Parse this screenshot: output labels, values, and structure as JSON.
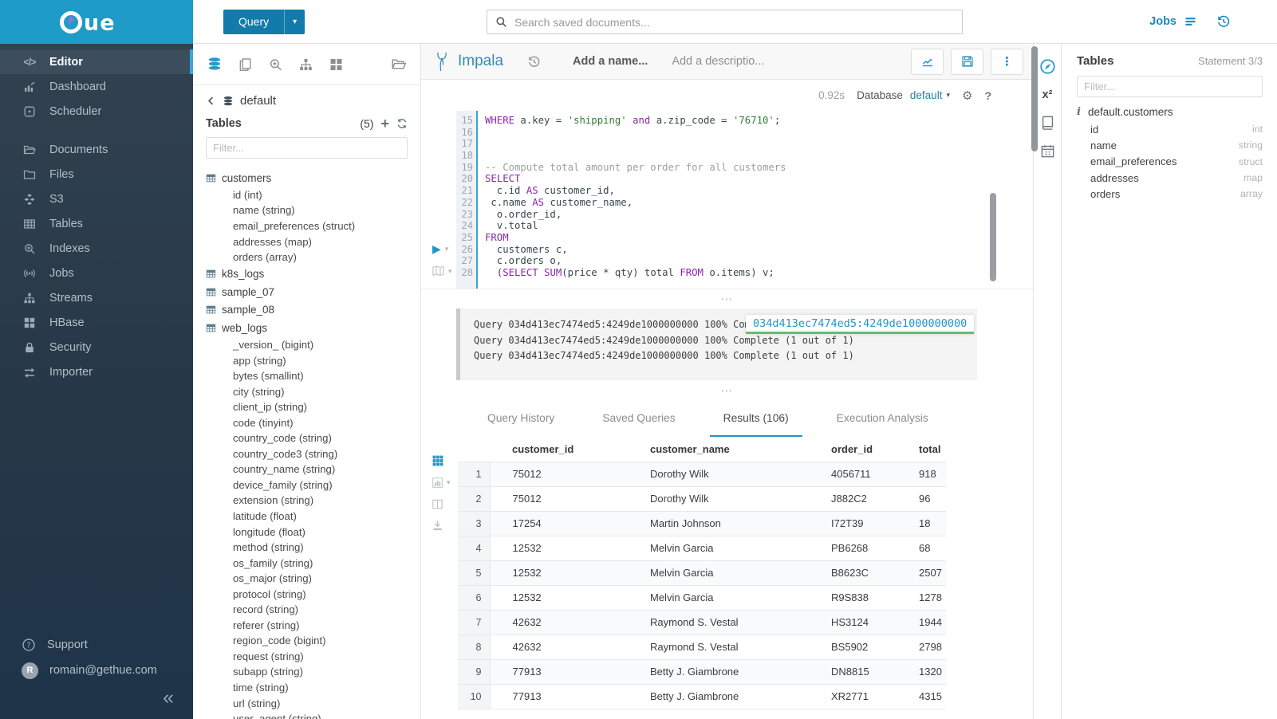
{
  "brand": {
    "logo_ue": "ue"
  },
  "topbar": {
    "query_button": "Query",
    "search_placeholder": "Search saved documents...",
    "jobs_label": "Jobs"
  },
  "sidebar": {
    "items": [
      {
        "label": "Editor",
        "icon": "code-icon",
        "active": true
      },
      {
        "label": "Dashboard",
        "icon": "dashboard-icon"
      },
      {
        "label": "Scheduler",
        "icon": "scheduler-icon"
      },
      {
        "label": "Documents",
        "icon": "documents-icon",
        "gap": true
      },
      {
        "label": "Files",
        "icon": "files-icon"
      },
      {
        "label": "S3",
        "icon": "s3-icon"
      },
      {
        "label": "Tables",
        "icon": "tables-icon"
      },
      {
        "label": "Indexes",
        "icon": "indexes-icon"
      },
      {
        "label": "Jobs",
        "icon": "jobs-icon"
      },
      {
        "label": "Streams",
        "icon": "streams-icon"
      },
      {
        "label": "HBase",
        "icon": "hbase-icon"
      },
      {
        "label": "Security",
        "icon": "security-icon"
      },
      {
        "label": "Importer",
        "icon": "importer-icon"
      }
    ],
    "support_label": "Support",
    "user_initial": "R",
    "user_email": "romain@gethue.com"
  },
  "left_assist": {
    "database": "default",
    "tables_label": "Tables",
    "tables_count": "(5)",
    "filter_placeholder": "Filter...",
    "tree": [
      {
        "kind": "table",
        "label": "customers"
      },
      {
        "kind": "column",
        "label": "id (int)"
      },
      {
        "kind": "column",
        "label": "name (string)"
      },
      {
        "kind": "column",
        "label": "email_preferences (struct)"
      },
      {
        "kind": "column",
        "label": "addresses (map)"
      },
      {
        "kind": "column",
        "label": "orders (array)"
      },
      {
        "kind": "table",
        "label": "k8s_logs"
      },
      {
        "kind": "table",
        "label": "sample_07"
      },
      {
        "kind": "table",
        "label": "sample_08"
      },
      {
        "kind": "table",
        "label": "web_logs"
      },
      {
        "kind": "column",
        "label": "_version_ (bigint)"
      },
      {
        "kind": "column",
        "label": "app (string)"
      },
      {
        "kind": "column",
        "label": "bytes (smallint)"
      },
      {
        "kind": "column",
        "label": "city (string)"
      },
      {
        "kind": "column",
        "label": "client_ip (string)"
      },
      {
        "kind": "column",
        "label": "code (tinyint)"
      },
      {
        "kind": "column",
        "label": "country_code (string)"
      },
      {
        "kind": "column",
        "label": "country_code3 (string)"
      },
      {
        "kind": "column",
        "label": "country_name (string)"
      },
      {
        "kind": "column",
        "label": "device_family (string)"
      },
      {
        "kind": "column",
        "label": "extension (string)"
      },
      {
        "kind": "column",
        "label": "latitude (float)"
      },
      {
        "kind": "column",
        "label": "longitude (float)"
      },
      {
        "kind": "column",
        "label": "method (string)"
      },
      {
        "kind": "column",
        "label": "os_family (string)"
      },
      {
        "kind": "column",
        "label": "os_major (string)"
      },
      {
        "kind": "column",
        "label": "protocol (string)"
      },
      {
        "kind": "column",
        "label": "record (string)"
      },
      {
        "kind": "column",
        "label": "referer (string)"
      },
      {
        "kind": "column",
        "label": "region_code (bigint)"
      },
      {
        "kind": "column",
        "label": "request (string)"
      },
      {
        "kind": "column",
        "label": "subapp (string)"
      },
      {
        "kind": "column",
        "label": "time (string)"
      },
      {
        "kind": "column",
        "label": "url (string)"
      },
      {
        "kind": "column",
        "label": "user_agent (string)"
      }
    ]
  },
  "editor": {
    "engine": "Impala",
    "name_placeholder": "Add a name...",
    "description_placeholder": "Add a descriptio...",
    "exec_time": "0.92s",
    "database_label": "Database",
    "database_value": "default",
    "code": [
      {
        "n": "15",
        "tokens": [
          [
            "k",
            "WHERE"
          ],
          [
            "p",
            " a.key = "
          ],
          [
            "s",
            "'shipping'"
          ],
          [
            "p",
            " "
          ],
          [
            "k",
            "and"
          ],
          [
            "p",
            " a.zip_code = "
          ],
          [
            "s",
            "'76710'"
          ],
          [
            "p",
            ";"
          ]
        ]
      },
      {
        "n": "16",
        "tokens": []
      },
      {
        "n": "17",
        "tokens": []
      },
      {
        "n": "18",
        "tokens": []
      },
      {
        "n": "19",
        "tokens": [
          [
            "c",
            "-- Compute total amount per order for all customers"
          ]
        ]
      },
      {
        "n": "20",
        "tokens": [
          [
            "k",
            "SELECT"
          ]
        ]
      },
      {
        "n": "21",
        "tokens": [
          [
            "p",
            "  c.id "
          ],
          [
            "k",
            "AS"
          ],
          [
            "p",
            " customer_id,"
          ]
        ]
      },
      {
        "n": "22",
        "tokens": [
          [
            "p",
            " c.name "
          ],
          [
            "k",
            "AS"
          ],
          [
            "p",
            " customer_name,"
          ]
        ]
      },
      {
        "n": "23",
        "tokens": [
          [
            "p",
            "  o.order_id,"
          ]
        ]
      },
      {
        "n": "24",
        "tokens": [
          [
            "p",
            "  v.total"
          ]
        ]
      },
      {
        "n": "25",
        "tokens": [
          [
            "k",
            "FROM"
          ]
        ]
      },
      {
        "n": "26",
        "tokens": [
          [
            "p",
            "  customers c,"
          ]
        ]
      },
      {
        "n": "27",
        "tokens": [
          [
            "p",
            "  c.orders o,"
          ]
        ]
      },
      {
        "n": "28",
        "tokens": [
          [
            "p",
            "  ("
          ],
          [
            "k",
            "SELECT"
          ],
          [
            "p",
            " "
          ],
          [
            "k",
            "SUM"
          ],
          [
            "p",
            "(price * qty) total "
          ],
          [
            "k",
            "FROM"
          ],
          [
            "p",
            " o.items) v;"
          ]
        ]
      }
    ],
    "log_lines": [
      "Query 034d413ec7474ed5:4249de1000000000 100% Complete (1 out of 1)",
      "Query 034d413ec7474ed5:4249de1000000000 100% Complete (1 out of 1)",
      "Query 034d413ec7474ed5:4249de1000000000 100% Complete (1 out of 1)"
    ],
    "query_id_tooltip": "034d413ec7474ed5:4249de1000000000"
  },
  "tabs": [
    {
      "label": "Query History"
    },
    {
      "label": "Saved Queries"
    },
    {
      "label": "Results (106)",
      "active": true
    },
    {
      "label": "Execution Analysis"
    }
  ],
  "results": {
    "columns": [
      "customer_id",
      "customer_name",
      "order_id",
      "total"
    ],
    "rows": [
      {
        "i": "1",
        "cells": [
          "75012",
          "Dorothy Wilk",
          "4056711",
          "918"
        ]
      },
      {
        "i": "2",
        "cells": [
          "75012",
          "Dorothy Wilk",
          "J882C2",
          "96"
        ]
      },
      {
        "i": "3",
        "cells": [
          "17254",
          "Martin Johnson",
          "I72T39",
          "18"
        ]
      },
      {
        "i": "4",
        "cells": [
          "12532",
          "Melvin Garcia",
          "PB6268",
          "68"
        ]
      },
      {
        "i": "5",
        "cells": [
          "12532",
          "Melvin Garcia",
          "B8623C",
          "2507"
        ]
      },
      {
        "i": "6",
        "cells": [
          "12532",
          "Melvin Garcia",
          "R9S838",
          "1278"
        ]
      },
      {
        "i": "7",
        "cells": [
          "42632",
          "Raymond S. Vestal",
          "HS3124",
          "1944"
        ]
      },
      {
        "i": "8",
        "cells": [
          "42632",
          "Raymond S. Vestal",
          "BS5902",
          "2798"
        ]
      },
      {
        "i": "9",
        "cells": [
          "77913",
          "Betty J. Giambrone",
          "DN8815",
          "1320"
        ]
      },
      {
        "i": "10",
        "cells": [
          "77913",
          "Betty J. Giambrone",
          "XR2771",
          "4315"
        ]
      }
    ]
  },
  "right_panel": {
    "title": "Tables",
    "statement": "Statement 3/3",
    "filter_placeholder": "Filter...",
    "table": "default.customers",
    "columns": [
      {
        "name": "id",
        "type": "int"
      },
      {
        "name": "name",
        "type": "string"
      },
      {
        "name": "email_preferences",
        "type": "struct"
      },
      {
        "name": "addresses",
        "type": "map"
      },
      {
        "name": "orders",
        "type": "array"
      }
    ]
  },
  "colors": {
    "accent": "#2196c8",
    "brand_top": "#1f9bc7",
    "query_button": "#137bab",
    "sidebar_bg": "#2c3e50",
    "keyword": "#8e24aa",
    "string": "#2e7d32",
    "comment": "#9e9e9e",
    "tooltip_green": "#66bd6d"
  }
}
